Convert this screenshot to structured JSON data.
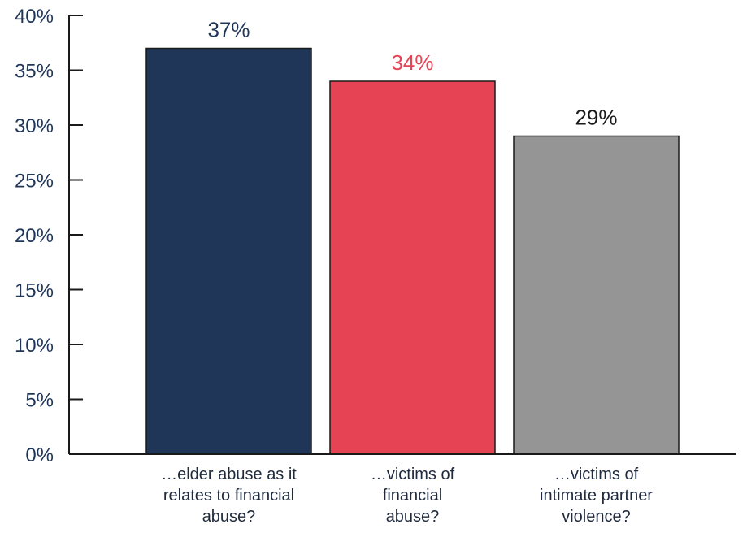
{
  "chart_data": {
    "type": "bar",
    "categories": [
      [
        "…elder abuse as it",
        "relates to financial",
        "abuse?"
      ],
      [
        "…victims of",
        "financial",
        "abuse?"
      ],
      [
        "…victims of",
        "intimate partner",
        "violence?"
      ]
    ],
    "values": [
      37,
      34,
      29
    ],
    "data_labels": [
      "37%",
      "34%",
      "29%"
    ],
    "bar_colors": [
      "#1f3659",
      "#e64455",
      "#959596"
    ],
    "label_colors": [
      "#1f3659",
      "#e64455",
      "#1a1a1a"
    ],
    "ylim": [
      0,
      40
    ],
    "yticks": [
      0,
      5,
      10,
      15,
      20,
      25,
      30,
      35,
      40
    ],
    "ytick_labels": [
      "0%",
      "5%",
      "10%",
      "15%",
      "20%",
      "25%",
      "30%",
      "35%",
      "40%"
    ],
    "grid": false,
    "title": "",
    "xlabel": "",
    "ylabel": ""
  }
}
